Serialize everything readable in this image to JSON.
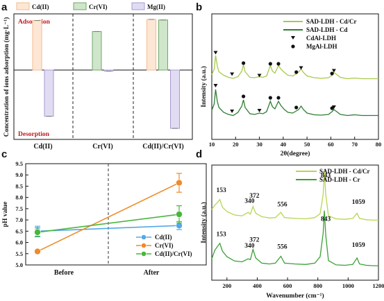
{
  "panels": {
    "a": "a",
    "b": "b",
    "c": "c",
    "d": "d"
  },
  "chart_data": [
    {
      "panel": "a",
      "type": "bar",
      "ylabel": "Concentration of ions adsorption (mg·L⁻¹)",
      "categories": [
        "Cd(II)",
        "Cr(VI)",
        "Cd(II)/Cr(VI)"
      ],
      "series": [
        {
          "name": "Cd(II)",
          "color": "#f6b98c",
          "fill": "#fde7d4",
          "values": [
            45,
            null,
            46
          ]
        },
        {
          "name": "Cr(VI)",
          "color": "#6fa76a",
          "fill": "#cfe6cb",
          "values": [
            null,
            35,
            45.5
          ]
        },
        {
          "name": "Mg(II)",
          "color": "#a59ad0",
          "fill": "#e2dcf3",
          "values": [
            -42,
            -1,
            -53
          ]
        }
      ],
      "annotations": {
        "top": "Adsorption",
        "bottom": "Desorption"
      },
      "ylim": [
        -60,
        50
      ],
      "grid": false,
      "legend": "top"
    },
    {
      "panel": "b",
      "type": "line",
      "xlabel": "2θ(degree)",
      "ylabel": "Intensity (a.u.)",
      "xlim": [
        10,
        80
      ],
      "xticks": [
        10,
        20,
        30,
        40,
        50,
        60,
        70,
        80
      ],
      "series": [
        {
          "name": "SAD-LDH - Cd/Cr",
          "color": "#a8c94a",
          "offset": 1.05,
          "points": [
            [
              10,
              0.3
            ],
            [
              11,
              0.45
            ],
            [
              11.6,
              0.85
            ],
            [
              12.3,
              0.55
            ],
            [
              13,
              0.38
            ],
            [
              15,
              0.28
            ],
            [
              17,
              0.22
            ],
            [
              19,
              0.19
            ],
            [
              21,
              0.24
            ],
            [
              22.6,
              0.4
            ],
            [
              23.3,
              0.58
            ],
            [
              24,
              0.38
            ],
            [
              26,
              0.22
            ],
            [
              28,
              0.21
            ],
            [
              30,
              0.24
            ],
            [
              31.5,
              0.22
            ],
            [
              33,
              0.26
            ],
            [
              34.6,
              0.56
            ],
            [
              35.5,
              0.4
            ],
            [
              36.5,
              0.34
            ],
            [
              38,
              0.56
            ],
            [
              39,
              0.46
            ],
            [
              40.5,
              0.36
            ],
            [
              42,
              0.28
            ],
            [
              44,
              0.26
            ],
            [
              45.5,
              0.32
            ],
            [
              46.5,
              0.38
            ],
            [
              47.5,
              0.46
            ],
            [
              48.5,
              0.36
            ],
            [
              50,
              0.26
            ],
            [
              53,
              0.21
            ],
            [
              56,
              0.19
            ],
            [
              59,
              0.21
            ],
            [
              60.5,
              0.28
            ],
            [
              61.3,
              0.36
            ],
            [
              62.5,
              0.3
            ],
            [
              64,
              0.22
            ],
            [
              67,
              0.18
            ],
            [
              70,
              0.2
            ],
            [
              73,
              0.18
            ],
            [
              76,
              0.18
            ],
            [
              80,
              0.18
            ]
          ]
        },
        {
          "name": "SAD-LDH - Cd",
          "color": "#2e7d32",
          "offset": 0.0,
          "points": [
            [
              10,
              0.32
            ],
            [
              11,
              0.5
            ],
            [
              11.6,
              0.92
            ],
            [
              12.3,
              0.58
            ],
            [
              13,
              0.4
            ],
            [
              15,
              0.26
            ],
            [
              17,
              0.2
            ],
            [
              19,
              0.17
            ],
            [
              21,
              0.26
            ],
            [
              22.6,
              0.44
            ],
            [
              23.3,
              0.62
            ],
            [
              24,
              0.4
            ],
            [
              26,
              0.22
            ],
            [
              28,
              0.2
            ],
            [
              30,
              0.24
            ],
            [
              31.5,
              0.22
            ],
            [
              33,
              0.28
            ],
            [
              34.6,
              0.58
            ],
            [
              35.5,
              0.42
            ],
            [
              36.5,
              0.36
            ],
            [
              38,
              0.58
            ],
            [
              39,
              0.46
            ],
            [
              40.5,
              0.34
            ],
            [
              42,
              0.26
            ],
            [
              44,
              0.24
            ],
            [
              45.5,
              0.3
            ],
            [
              46.5,
              0.34
            ],
            [
              47.5,
              0.44
            ],
            [
              48.5,
              0.34
            ],
            [
              50,
              0.24
            ],
            [
              53,
              0.19
            ],
            [
              56,
              0.18
            ],
            [
              59,
              0.2
            ],
            [
              60.5,
              0.28
            ],
            [
              61.3,
              0.34
            ],
            [
              62.5,
              0.28
            ],
            [
              64,
              0.2
            ],
            [
              67,
              0.17
            ],
            [
              70,
              0.19
            ],
            [
              73,
              0.17
            ],
            [
              76,
              0.17
            ],
            [
              80,
              0.17
            ]
          ]
        }
      ],
      "markers": {
        "CdAl-LDH": [
          [
            11.6,
            1.97
          ],
          [
            18.5,
            1.35
          ],
          [
            30,
            1.31
          ],
          [
            47.5,
            1.53
          ],
          [
            61.3,
            1.45
          ],
          [
            11.6,
            1.02
          ],
          [
            18.5,
            0.28
          ],
          [
            30,
            0.3
          ],
          [
            61.3,
            0.4
          ]
        ],
        "MgAl-LDH": [
          [
            23.3,
            1.68
          ],
          [
            34.6,
            1.66
          ],
          [
            38,
            1.66
          ],
          [
            45.5,
            1.42
          ],
          [
            60.5,
            1.38
          ],
          [
            23.3,
            0.72
          ],
          [
            34.6,
            0.68
          ],
          [
            38,
            0.68
          ],
          [
            45.5,
            0.4
          ],
          [
            60.5,
            0.38
          ]
        ]
      },
      "legend_labels": [
        "SAD-LDH - Cd/Cr",
        "SAD-LDH - Cd",
        "CdAl-LDH",
        "MgAl-LDH"
      ],
      "legend": "top-right",
      "grid": false
    },
    {
      "panel": "c",
      "type": "line",
      "ylabel": "pH value",
      "categories": [
        "Before",
        "After"
      ],
      "ylim": [
        5.0,
        9.5
      ],
      "yticks": [
        5.0,
        5.5,
        6.0,
        6.5,
        7.0,
        7.5,
        8.0,
        8.5,
        9.0,
        9.5
      ],
      "series": [
        {
          "name": "Cd(II)",
          "color": "#53a8e6",
          "values": [
            6.5,
            6.75
          ],
          "errors": [
            0.22,
            0.18
          ]
        },
        {
          "name": "Cr(VI)",
          "color": "#ee8b2a",
          "values": [
            5.6,
            8.65
          ],
          "errors": [
            0.08,
            0.42
          ]
        },
        {
          "name": "Cd(II)/Cr(VI)",
          "color": "#48b63c",
          "values": [
            6.45,
            7.25
          ],
          "errors": [
            0.2,
            0.38
          ]
        }
      ],
      "legend": "bottom-right",
      "grid": false
    },
    {
      "panel": "d",
      "type": "line",
      "xlabel": "Wavenumber (cm⁻¹)",
      "ylabel": "Intensity (a.u.)",
      "xlim": [
        100,
        1200
      ],
      "xticks": [
        200,
        400,
        600,
        800,
        1000,
        1200
      ],
      "series": [
        {
          "name": "SAD-LDH - Cd/Cr",
          "color": "#b5d652",
          "offset": 1.0,
          "points": [
            [
              100,
              0.55
            ],
            [
              120,
              0.65
            ],
            [
              140,
              0.72
            ],
            [
              153,
              0.78
            ],
            [
              170,
              0.6
            ],
            [
              200,
              0.5
            ],
            [
              250,
              0.42
            ],
            [
              300,
              0.4
            ],
            [
              340,
              0.48
            ],
            [
              355,
              0.44
            ],
            [
              372,
              0.62
            ],
            [
              390,
              0.46
            ],
            [
              430,
              0.38
            ],
            [
              480,
              0.35
            ],
            [
              520,
              0.36
            ],
            [
              556,
              0.48
            ],
            [
              580,
              0.36
            ],
            [
              650,
              0.34
            ],
            [
              720,
              0.33
            ],
            [
              780,
              0.36
            ],
            [
              815,
              0.45
            ],
            [
              835,
              0.9
            ],
            [
              843,
              1.42
            ],
            [
              852,
              0.9
            ],
            [
              870,
              0.4
            ],
            [
              920,
              0.33
            ],
            [
              980,
              0.32
            ],
            [
              1030,
              0.34
            ],
            [
              1059,
              0.46
            ],
            [
              1075,
              0.34
            ],
            [
              1120,
              0.31
            ],
            [
              1160,
              0.3
            ],
            [
              1200,
              0.3
            ]
          ]
        },
        {
          "name": "SAD-LDH - Cr",
          "color": "#3aa135",
          "offset": 0.0,
          "points": [
            [
              100,
              0.4
            ],
            [
              120,
              0.6
            ],
            [
              140,
              0.7
            ],
            [
              153,
              0.76
            ],
            [
              170,
              0.58
            ],
            [
              200,
              0.45
            ],
            [
              250,
              0.35
            ],
            [
              300,
              0.33
            ],
            [
              340,
              0.4
            ],
            [
              355,
              0.38
            ],
            [
              372,
              0.62
            ],
            [
              390,
              0.42
            ],
            [
              430,
              0.3
            ],
            [
              480,
              0.28
            ],
            [
              520,
              0.3
            ],
            [
              556,
              0.46
            ],
            [
              580,
              0.3
            ],
            [
              650,
              0.28
            ],
            [
              720,
              0.27
            ],
            [
              780,
              0.3
            ],
            [
              815,
              0.45
            ],
            [
              835,
              1.0
            ],
            [
              843,
              1.52
            ],
            [
              852,
              0.95
            ],
            [
              870,
              0.36
            ],
            [
              920,
              0.26
            ],
            [
              980,
              0.25
            ],
            [
              1030,
              0.27
            ],
            [
              1059,
              0.42
            ],
            [
              1075,
              0.28
            ],
            [
              1120,
              0.25
            ],
            [
              1160,
              0.24
            ],
            [
              1200,
              0.24
            ]
          ]
        }
      ],
      "peak_labels": [
        {
          "text": "153",
          "x": 153,
          "y": 1.95
        },
        {
          "text": "340",
          "x": 340,
          "y": 1.7
        },
        {
          "text": "372",
          "x": 372,
          "y": 1.82
        },
        {
          "text": "556",
          "x": 556,
          "y": 1.62
        },
        {
          "text": "843",
          "x": 843,
          "y": 2.3
        },
        {
          "text": "1059",
          "x": 1059,
          "y": 1.68
        },
        {
          "text": "153",
          "x": 153,
          "y": 0.93
        },
        {
          "text": "340",
          "x": 340,
          "y": 0.66
        },
        {
          "text": "372",
          "x": 372,
          "y": 0.8
        },
        {
          "text": "556",
          "x": 556,
          "y": 0.64
        },
        {
          "text": "843",
          "x": 843,
          "y": 1.28
        },
        {
          "text": "1059",
          "x": 1059,
          "y": 0.68
        }
      ],
      "legend": "top-right",
      "grid": false
    }
  ]
}
